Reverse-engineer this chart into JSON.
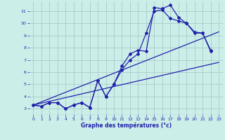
{
  "title": "Graphe des températures (°c)",
  "background_color": "#cceee8",
  "grid_color": "#aacccc",
  "line_color": "#2222aa",
  "xlim": [
    -0.5,
    23.5
  ],
  "ylim": [
    2.5,
    11.8
  ],
  "xticks": [
    0,
    1,
    2,
    3,
    4,
    5,
    6,
    7,
    8,
    9,
    10,
    11,
    12,
    13,
    14,
    15,
    16,
    17,
    18,
    19,
    20,
    21,
    22,
    23
  ],
  "yticks": [
    3,
    4,
    5,
    6,
    7,
    8,
    9,
    10,
    11
  ],
  "series": [
    {
      "x": [
        0,
        1,
        2,
        3,
        4,
        5,
        6,
        7,
        8,
        9,
        10,
        11,
        12,
        13,
        14,
        15,
        16,
        17,
        18,
        19,
        20,
        21,
        22
      ],
      "y": [
        3.3,
        3.2,
        3.5,
        3.5,
        3.0,
        3.3,
        3.5,
        3.1,
        5.3,
        4.0,
        5.0,
        6.5,
        7.5,
        7.8,
        7.7,
        11.3,
        11.2,
        11.5,
        10.5,
        10.0,
        9.3,
        9.2,
        7.8
      ],
      "marker": "D",
      "markersize": 2.0,
      "linewidth": 0.9
    },
    {
      "x": [
        0,
        1,
        2,
        3,
        4,
        5,
        6,
        7,
        8,
        9,
        10,
        11,
        12,
        13,
        14,
        15,
        16,
        17,
        18,
        19,
        20,
        21,
        22
      ],
      "y": [
        3.3,
        3.2,
        3.5,
        3.5,
        3.0,
        3.3,
        3.5,
        3.1,
        5.3,
        4.0,
        5.0,
        6.2,
        7.0,
        7.5,
        9.2,
        11.0,
        11.1,
        10.4,
        10.2,
        10.0,
        9.2,
        9.2,
        7.7
      ],
      "marker": "D",
      "markersize": 2.0,
      "linewidth": 0.9
    },
    {
      "x": [
        0,
        23
      ],
      "y": [
        3.3,
        9.3
      ],
      "marker": null,
      "markersize": 0,
      "linewidth": 0.9
    },
    {
      "x": [
        0,
        23
      ],
      "y": [
        3.3,
        6.8
      ],
      "marker": null,
      "markersize": 0,
      "linewidth": 0.9
    }
  ]
}
